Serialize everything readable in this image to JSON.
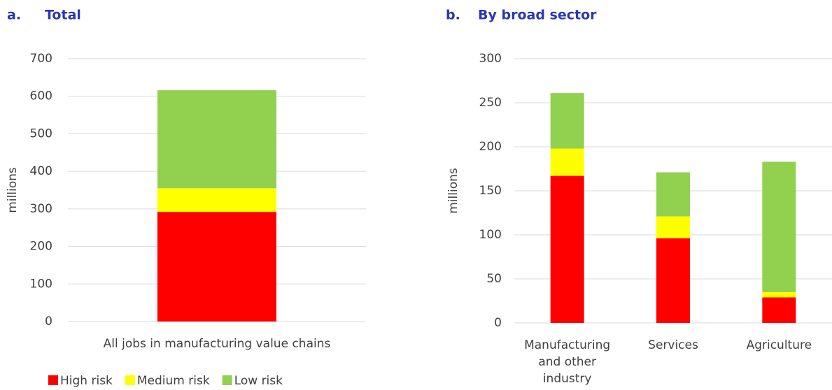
{
  "chart_data": [
    {
      "type": "stacked-bar",
      "label": "a.",
      "title": "Total",
      "y_label": "millions",
      "categories": [
        "All jobs in manufacturing value chains"
      ],
      "series": [
        {
          "name": "High risk",
          "color": "#ff0000",
          "values": [
            292
          ]
        },
        {
          "name": "Medium risk",
          "color": "#ffff00",
          "values": [
            63
          ]
        },
        {
          "name": "Low risk",
          "color": "#92d050",
          "values": [
            261
          ]
        }
      ],
      "ylim": [
        0,
        700
      ],
      "yticks": [
        0,
        100,
        200,
        300,
        400,
        500,
        600,
        700
      ],
      "grid": true,
      "legend": "bottom"
    },
    {
      "type": "stacked-bar",
      "label": "b.",
      "title": "By broad sector",
      "y_label": "millions",
      "categories": [
        "Manufacturing and other industry",
        "Services",
        "Agriculture"
      ],
      "series": [
        {
          "color": "#ff0000",
          "values": [
            167,
            96,
            29
          ]
        },
        {
          "color": "#ffff00",
          "values": [
            31,
            25,
            6
          ]
        },
        {
          "color": "#92d050",
          "values": [
            63,
            50,
            148
          ]
        }
      ],
      "ylim": [
        0,
        300
      ],
      "yticks": [
        0,
        50,
        100,
        150,
        200,
        250,
        300
      ],
      "grid": true
    }
  ]
}
